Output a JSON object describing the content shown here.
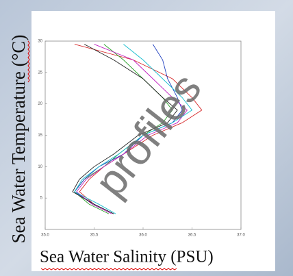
{
  "chart_data": {
    "type": "line",
    "ylabel": "Sea Water Temperature (°C)",
    "xlabel": "Sea Water Salinity (PSU)",
    "watermark": "profiles",
    "xlim": [
      35.0,
      37.0
    ],
    "xticks": [
      {
        "value": 35.0,
        "label": "35.0"
      },
      {
        "value": 35.5,
        "label": "35.5"
      },
      {
        "value": 36.0,
        "label": "36.0"
      },
      {
        "value": 36.5,
        "label": "36.5"
      },
      {
        "value": 37.0,
        "label": "37.0"
      }
    ],
    "ylim": [
      0,
      30
    ],
    "yticks": [
      5,
      10,
      15,
      20,
      25,
      30
    ],
    "series": [
      {
        "color": "#d62728",
        "x": [
          35.3,
          35.9,
          36.3,
          36.5,
          36.6,
          36.4,
          36.1,
          35.8,
          35.6,
          35.45,
          35.35,
          35.5,
          35.7
        ],
        "values": [
          29.5,
          27,
          24,
          21,
          19,
          17,
          15,
          12,
          10,
          8,
          6,
          4,
          2.5
        ]
      },
      {
        "color": "#2ca02c",
        "x": [
          35.6,
          35.8,
          36.0,
          36.2,
          36.3,
          36.2,
          36.0,
          35.75,
          35.6,
          35.4,
          35.3,
          35.45,
          35.65
        ],
        "values": [
          29.5,
          27,
          24,
          21,
          19,
          17,
          15,
          12,
          10,
          8,
          6,
          4,
          2.5
        ]
      },
      {
        "color": "#1f3fbf",
        "x": [
          36.1,
          36.2,
          36.25,
          36.35,
          36.4,
          36.3,
          36.0,
          35.8,
          35.55,
          35.4,
          35.3,
          35.5,
          35.7
        ],
        "values": [
          29.5,
          27,
          24,
          21,
          19,
          17,
          15,
          12,
          10,
          8,
          6,
          4,
          2.5
        ]
      },
      {
        "color": "#c020c0",
        "x": [
          35.5,
          35.9,
          36.1,
          36.3,
          36.45,
          36.35,
          36.05,
          35.8,
          35.6,
          35.42,
          35.32,
          35.48,
          35.68
        ],
        "values": [
          29.5,
          27,
          24,
          21,
          19,
          17,
          15,
          12,
          10,
          8,
          6,
          4,
          2.5
        ]
      },
      {
        "color": "#17becf",
        "x": [
          35.8,
          36.0,
          36.2,
          36.4,
          36.5,
          36.3,
          36.0,
          35.75,
          35.55,
          35.38,
          35.3,
          35.55,
          35.72
        ],
        "values": [
          29.5,
          27,
          24,
          21,
          19,
          17,
          15,
          12,
          10,
          8,
          6,
          4,
          2.5
        ]
      },
      {
        "color": "#222222",
        "x": [
          35.4,
          35.7,
          36.0,
          36.2,
          36.35,
          36.25,
          35.95,
          35.7,
          35.5,
          35.35,
          35.28,
          35.5,
          35.7
        ],
        "values": [
          29.5,
          27,
          24,
          21,
          19,
          17,
          15,
          12,
          10,
          8,
          6,
          4,
          2.5
        ]
      }
    ]
  }
}
